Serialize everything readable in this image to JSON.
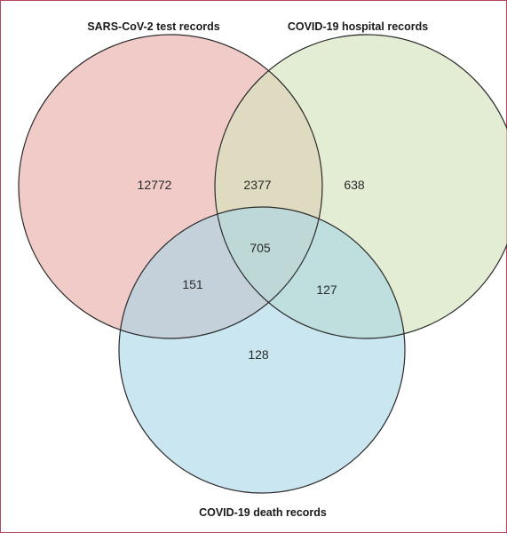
{
  "sets": [
    {
      "key": "test",
      "label": "SARS-CoV-2 test records",
      "color": "#e8a8a4"
    },
    {
      "key": "hospital",
      "label": "COVID-19 hospital records",
      "color": "#d4e3bc"
    },
    {
      "key": "death",
      "label": "COVID-19 death records",
      "color": "#a7d6e6"
    }
  ],
  "regions": {
    "test_only": "12772",
    "hospital_only": "638",
    "death_only": "128",
    "test_hospital": "2377",
    "test_death": "151",
    "hospital_death": "127",
    "all_three": "705"
  }
}
